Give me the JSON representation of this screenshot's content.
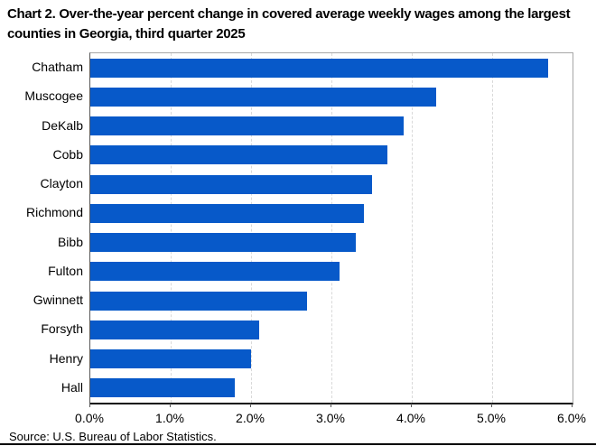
{
  "title": "Chart 2. Over-the-year percent change in covered average weekly wages among the largest counties in Georgia, third quarter 2025",
  "source": "Source: U.S. Bureau of Labor Statistics.",
  "colors": {
    "bar": "#0759C9",
    "gridline": "#D9D9D9",
    "plot_border": "#A6A6A6",
    "axis_line": "#0D0D0D"
  },
  "chart_data": {
    "type": "bar",
    "orientation": "horizontal",
    "title": "Chart 2. Over-the-year percent change in covered average weekly wages among the largest counties in Georgia, third quarter 2025",
    "categories": [
      "Chatham",
      "Muscogee",
      "DeKalb",
      "Cobb",
      "Clayton",
      "Richmond",
      "Bibb",
      "Fulton",
      "Gwinnett",
      "Forsyth",
      "Henry",
      "Hall"
    ],
    "values": [
      5.7,
      4.3,
      3.9,
      3.7,
      3.5,
      3.4,
      3.3,
      3.1,
      2.7,
      2.1,
      2.0,
      1.8
    ],
    "value_unit": "%",
    "xlabel": "",
    "ylabel": "",
    "xlim": [
      0,
      6
    ],
    "x_tick_labels": [
      "0.0%",
      "1.0%",
      "2.0%",
      "3.0%",
      "4.0%",
      "5.0%",
      "6.0%"
    ],
    "grid": "vertical dashed, behind bars",
    "legend": "none"
  }
}
